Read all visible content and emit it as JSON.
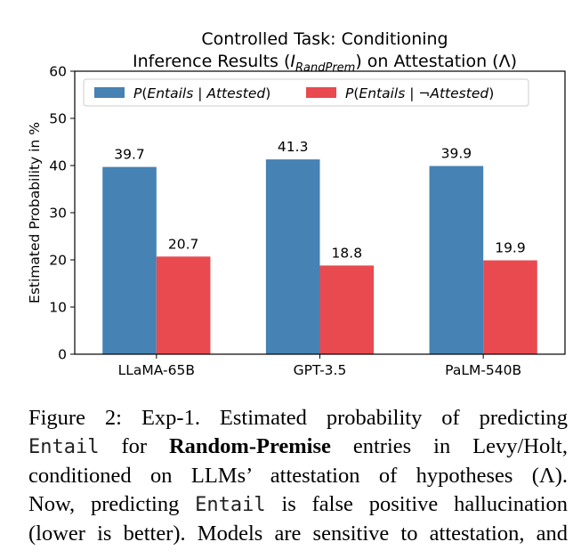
{
  "chart_data": {
    "type": "bar",
    "title_line1": "Controlled Task: Conditioning",
    "title_line2_pre": "Inference Results (",
    "title_line2_var": "I",
    "title_line2_sub": "RandPrem",
    "title_line2_post": ") on Attestation (Λ)",
    "ylabel": "Estimated Probability in %",
    "xlabel": "",
    "ylim": [
      0,
      60
    ],
    "yticks": [
      0,
      10,
      20,
      30,
      40,
      50,
      60
    ],
    "grid": false,
    "legend_position": "top",
    "categories": [
      "LLaMA-65B",
      "GPT-3.5",
      "PaLM-540B"
    ],
    "series": [
      {
        "name": "P(Entails | Attested)",
        "legend_pre": "P(",
        "legend_italic": "Entails | Attested",
        "legend_post": ")",
        "color": "#4682b4",
        "values": [
          39.7,
          41.3,
          39.9
        ]
      },
      {
        "name": "P(Entails | ¬Attested)",
        "legend_pre": "P(",
        "legend_italic": "Entails | ¬Attested",
        "legend_post": ")",
        "color": "#e84a4f",
        "values": [
          20.7,
          18.8,
          19.9
        ]
      }
    ]
  },
  "caption": {
    "l1_a": "Figure 2: Exp-1. Estimated probability of predicting",
    "l2_mono": "Entail",
    "l2_b": " for ",
    "l2_bold": "Random-Premise",
    "l2_c": " entries in Levy/Holt,",
    "l3": "conditioned on LLMs’ attestation of hypotheses (Λ).",
    "l4_a": "Now, predicting ",
    "l4_mono": "Entail",
    "l4_b": " is false positive hallucination",
    "l5": "(lower is better). Models are sensitive to attestation, and"
  }
}
